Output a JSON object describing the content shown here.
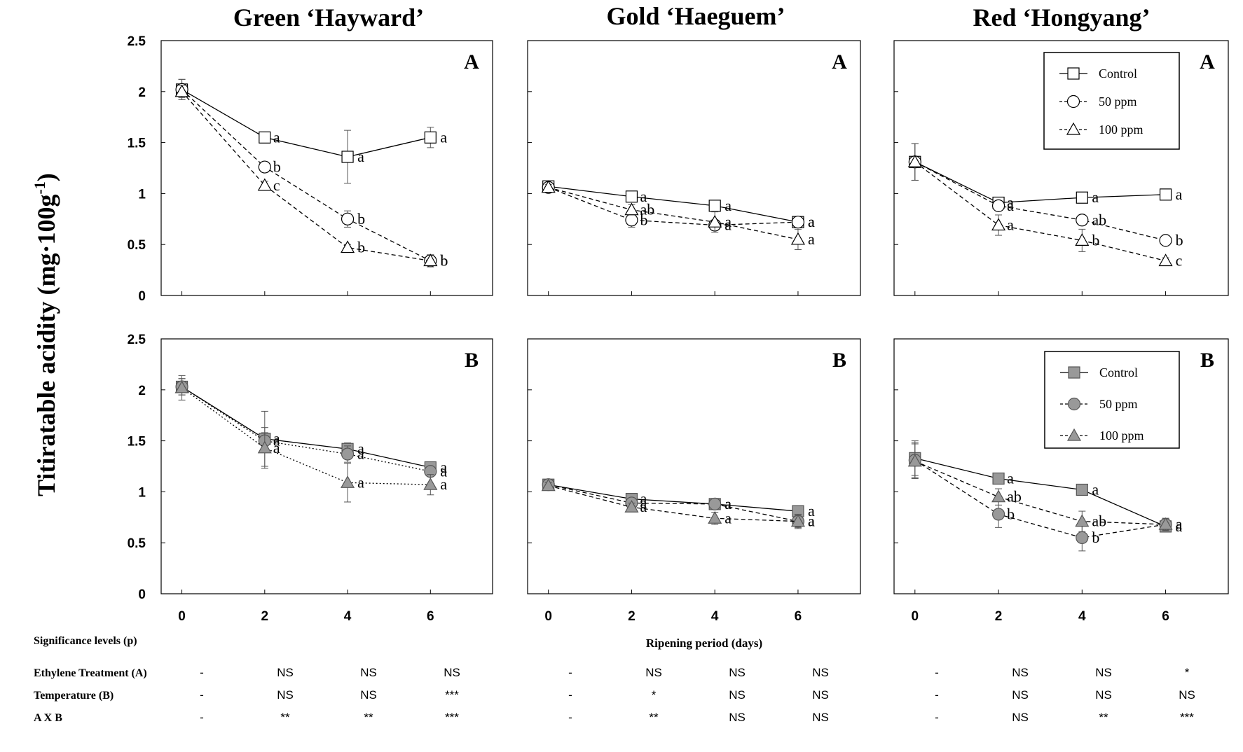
{
  "figure": {
    "y_axis_label": "Titiratable acidity (mg·100g",
    "y_axis_label_sup": "-1",
    "y_axis_label_end": ")",
    "x_axis_label": "Ripening period (days)",
    "columns": [
      "Green ‘Hayward’",
      "Gold ‘Haeguem’",
      "Red ‘Hongyang’"
    ]
  },
  "legends": {
    "A": [
      "Control",
      "50 ppm",
      "100 ppm"
    ],
    "B": [
      "Control",
      "50 ppm",
      "100 ppm"
    ]
  },
  "chart_data": [
    {
      "type": "line",
      "cultivar": "Green ‘Hayward’",
      "panel": "A",
      "x": [
        0,
        2,
        4,
        6
      ],
      "ylim": [
        0,
        2.5
      ],
      "yticks": [
        "0",
        "0.5",
        "1",
        "1.5",
        "2",
        "2.5"
      ],
      "grid": false,
      "series": [
        {
          "name": "Control",
          "marker": "square",
          "filled": false,
          "style": "solid",
          "values": [
            2.02,
            1.55,
            1.36,
            1.55
          ],
          "errors": [
            0.1,
            0.03,
            0.26,
            0.1
          ],
          "letters": [
            "",
            "a",
            "a",
            "a"
          ]
        },
        {
          "name": "50 ppm",
          "marker": "circle",
          "filled": false,
          "style": "dashed",
          "values": [
            2.02,
            1.26,
            0.75,
            0.34
          ],
          "errors": [
            0.1,
            0.05,
            0.08,
            0.04
          ],
          "letters": [
            "",
            "b",
            "b",
            "b"
          ]
        },
        {
          "name": "100 ppm",
          "marker": "triangle",
          "filled": false,
          "style": "dashed",
          "values": [
            2.0,
            1.08,
            0.47,
            0.34
          ],
          "errors": [
            0.06,
            0.04,
            0.03,
            0.06
          ],
          "letters": [
            "",
            "c",
            "b",
            "b"
          ]
        }
      ]
    },
    {
      "type": "line",
      "cultivar": "Gold ‘Haeguem’",
      "panel": "A",
      "x": [
        0,
        2,
        4,
        6
      ],
      "ylim": [
        0,
        2.5
      ],
      "grid": false,
      "series": [
        {
          "name": "Control",
          "marker": "square",
          "filled": false,
          "style": "solid",
          "values": [
            1.07,
            0.97,
            0.88,
            0.72
          ],
          "errors": [
            0.03,
            0.03,
            0.03,
            0.04
          ],
          "letters": [
            "",
            "a",
            "a",
            "a"
          ]
        },
        {
          "name": "50 ppm",
          "marker": "circle",
          "filled": false,
          "style": "dashed",
          "values": [
            1.06,
            0.74,
            0.69,
            0.72
          ],
          "errors": [
            0.03,
            0.07,
            0.04,
            0.04
          ],
          "letters": [
            "",
            "b",
            "a",
            "a"
          ]
        },
        {
          "name": "100 ppm",
          "marker": "triangle",
          "filled": false,
          "style": "dashed",
          "values": [
            1.06,
            0.84,
            0.72,
            0.55
          ],
          "errors": [
            0.03,
            0.05,
            0.1,
            0.1
          ],
          "letters": [
            "",
            "ab",
            "a",
            "a"
          ]
        }
      ]
    },
    {
      "type": "line",
      "cultivar": "Red ‘Hongyang’",
      "panel": "A",
      "x": [
        0,
        2,
        4,
        6
      ],
      "ylim": [
        0,
        2.5
      ],
      "grid": false,
      "series": [
        {
          "name": "Control",
          "marker": "square",
          "filled": false,
          "style": "solid",
          "values": [
            1.31,
            0.91,
            0.96,
            0.99
          ],
          "errors": [
            0.18,
            0.04,
            0.04,
            0.04
          ],
          "letters": [
            "",
            "a",
            "a",
            "a"
          ]
        },
        {
          "name": "50 ppm",
          "marker": "circle",
          "filled": false,
          "style": "dashed",
          "values": [
            1.31,
            0.88,
            0.74,
            0.54
          ],
          "errors": [
            0.18,
            0.04,
            0.04,
            0.03
          ],
          "letters": [
            "",
            "a",
            "ab",
            "b"
          ]
        },
        {
          "name": "100 ppm",
          "marker": "triangle",
          "filled": false,
          "style": "dashed",
          "values": [
            1.31,
            0.69,
            0.54,
            0.34
          ],
          "errors": [
            0.18,
            0.1,
            0.11,
            0.03
          ],
          "letters": [
            "",
            "a",
            "b",
            "c"
          ]
        }
      ]
    },
    {
      "type": "line",
      "cultivar": "Green ‘Hayward’",
      "panel": "B",
      "x": [
        0,
        2,
        4,
        6
      ],
      "ylim": [
        0,
        2.5
      ],
      "grid": false,
      "series": [
        {
          "name": "Control",
          "marker": "square",
          "filled": true,
          "style": "solid",
          "values": [
            2.03,
            1.52,
            1.42,
            1.24
          ],
          "errors": [
            0.08,
            0.27,
            0.06,
            0.05
          ],
          "letters": [
            "",
            "a",
            "a",
            "a"
          ]
        },
        {
          "name": "50 ppm",
          "marker": "circle",
          "filled": true,
          "style": "dotted",
          "values": [
            2.03,
            1.5,
            1.37,
            1.2
          ],
          "errors": [
            0.08,
            0.08,
            0.08,
            0.05
          ],
          "letters": [
            "",
            "a",
            "a",
            "a"
          ]
        },
        {
          "name": "100 ppm",
          "marker": "triangle",
          "filled": true,
          "style": "dotted",
          "values": [
            2.02,
            1.43,
            1.09,
            1.07
          ],
          "errors": [
            0.12,
            0.2,
            0.19,
            0.1
          ],
          "letters": [
            "",
            "a",
            "a",
            "a"
          ]
        }
      ]
    },
    {
      "type": "line",
      "cultivar": "Gold ‘Haeguem’",
      "panel": "B",
      "x": [
        0,
        2,
        4,
        6
      ],
      "ylim": [
        0,
        2.5
      ],
      "grid": false,
      "series": [
        {
          "name": "Control",
          "marker": "square",
          "filled": true,
          "style": "solid",
          "values": [
            1.07,
            0.93,
            0.88,
            0.81
          ],
          "errors": [
            0.03,
            0.03,
            0.03,
            0.03
          ],
          "letters": [
            "",
            "a",
            "a",
            "a"
          ]
        },
        {
          "name": "50 ppm",
          "marker": "circle",
          "filled": true,
          "style": "dashed",
          "values": [
            1.07,
            0.89,
            0.88,
            0.71
          ],
          "errors": [
            0.03,
            0.03,
            0.03,
            0.06
          ],
          "letters": [
            "",
            "a",
            "a",
            "a"
          ]
        },
        {
          "name": "100 ppm",
          "marker": "triangle",
          "filled": true,
          "style": "dashed",
          "values": [
            1.06,
            0.85,
            0.74,
            0.71
          ],
          "errors": [
            0.03,
            0.04,
            0.06,
            0.07
          ],
          "letters": [
            "",
            "a",
            "a",
            "a"
          ]
        }
      ]
    },
    {
      "type": "line",
      "cultivar": "Red ‘Hongyang’",
      "panel": "B",
      "x": [
        0,
        2,
        4,
        6
      ],
      "ylim": [
        0,
        2.5
      ],
      "grid": false,
      "series": [
        {
          "name": "Control",
          "marker": "square",
          "filled": true,
          "style": "solid",
          "values": [
            1.33,
            1.13,
            1.02,
            0.66
          ],
          "errors": [
            0.17,
            0.05,
            0.03,
            0.05
          ],
          "letters": [
            "",
            "a",
            "a",
            "a"
          ]
        },
        {
          "name": "50 ppm",
          "marker": "circle",
          "filled": true,
          "style": "dashed",
          "values": [
            1.31,
            0.78,
            0.55,
            0.68
          ],
          "errors": [
            0.17,
            0.13,
            0.13,
            0.06
          ],
          "letters": [
            "",
            "b",
            "b",
            "a"
          ]
        },
        {
          "name": "100 ppm",
          "marker": "triangle",
          "filled": true,
          "style": "dashed",
          "values": [
            1.3,
            0.95,
            0.71,
            0.68
          ],
          "errors": [
            0.17,
            0.08,
            0.1,
            0.06
          ],
          "letters": [
            "",
            "ab",
            "ab",
            "a"
          ]
        }
      ]
    }
  ],
  "stats_table": {
    "title": "Significance levels (p)",
    "rows": [
      {
        "label": "Ethylene Treatment (A)",
        "values": [
          "-",
          "NS",
          "NS",
          "NS",
          "-",
          "NS",
          "NS",
          "NS",
          "-",
          "NS",
          "NS",
          "*"
        ]
      },
      {
        "label": "Temperature (B)",
        "values": [
          "-",
          "NS",
          "NS",
          "***",
          "-",
          "*",
          "NS",
          "NS",
          "-",
          "NS",
          "NS",
          "NS"
        ]
      },
      {
        "label": "A X B",
        "values": [
          "-",
          "**",
          "**",
          "***",
          "-",
          "**",
          "NS",
          "NS",
          "-",
          "NS",
          "**",
          "***"
        ]
      }
    ]
  }
}
